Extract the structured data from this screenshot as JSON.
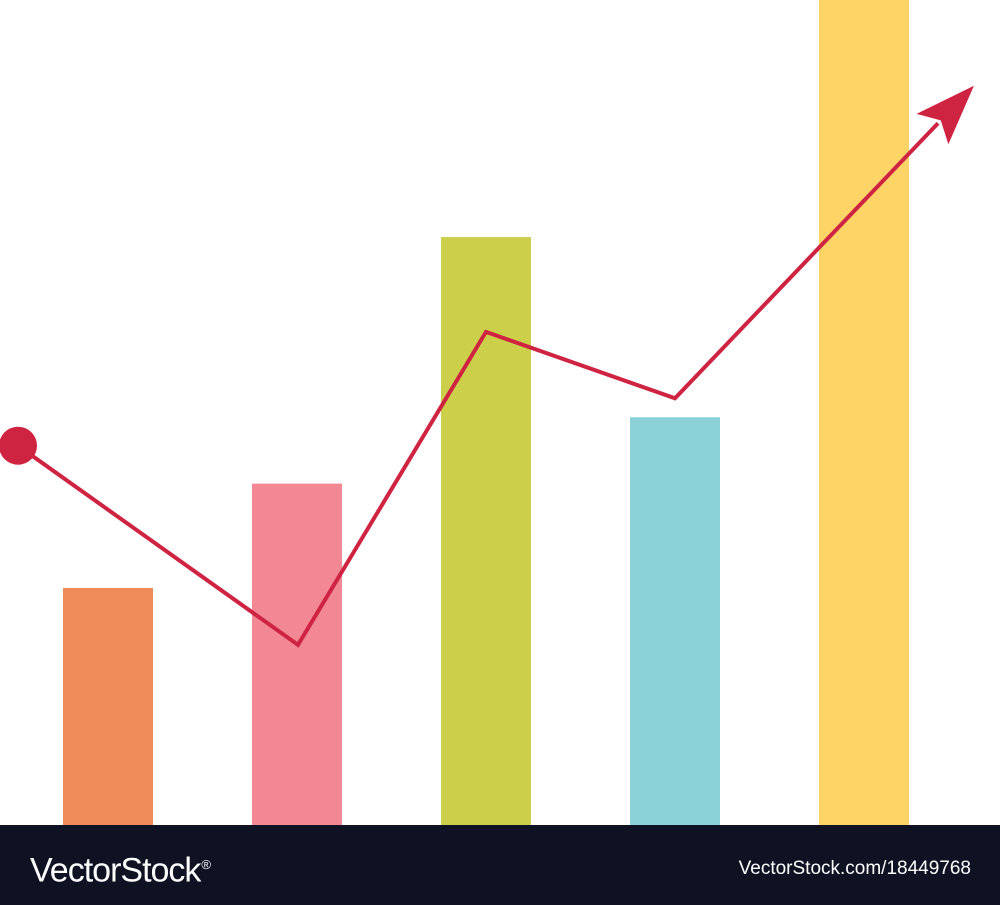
{
  "chart_data": {
    "type": "bar",
    "categories": [
      "",
      "",
      "",
      "",
      ""
    ],
    "values": [
      2.5,
      3.6,
      6.2,
      4.3,
      8.7
    ],
    "bar_colors": [
      "#f08c58",
      "#f28893",
      "#cbcf4a",
      "#8ad2d7",
      "#fed467"
    ],
    "trend_line": {
      "values": [
        4.0,
        1.9,
        5.2,
        4.5,
        7.4
      ],
      "color": "#cf2342",
      "start_marker": "dot",
      "end_marker": "arrow-head"
    },
    "ylim": [
      0,
      8.7
    ],
    "grid": false,
    "axes_visible": false
  },
  "footer": {
    "brand": "VectorStock",
    "registered_mark": "®",
    "site_text": "VectorStock.com/18449768",
    "background_color": "#0e1223",
    "text_color": "#ffffff"
  }
}
